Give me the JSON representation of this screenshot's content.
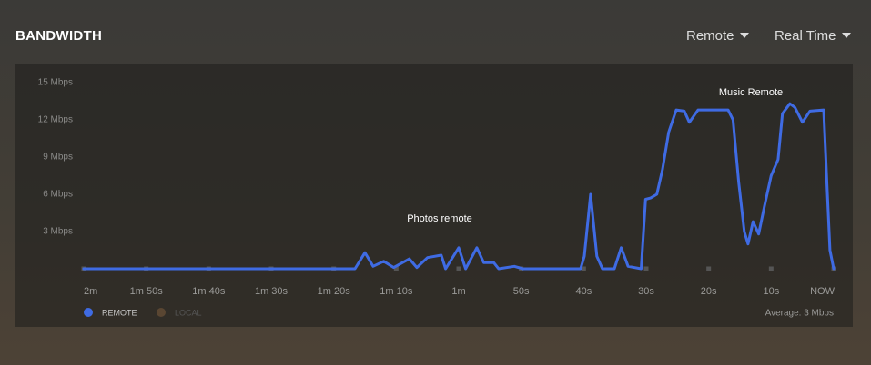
{
  "header": {
    "title": "BANDWIDTH",
    "source_filter": "Remote",
    "range_filter": "Real Time"
  },
  "chart_data": {
    "type": "line",
    "x": [
      -120,
      -76.6,
      -75.0,
      -73.7,
      -72.0,
      -70.4,
      -67.9,
      -66.7,
      -65.0,
      -62.8,
      -62.1,
      -60.0,
      -58.9,
      -57.1,
      -56.0,
      -54.4,
      -53.6,
      -51.1,
      -49.7,
      -40.5,
      -39.9,
      -38.9,
      -37.9,
      -37.0,
      -35.1,
      -34.0,
      -32.9,
      -30.8,
      -30.1,
      -29.3,
      -28.3,
      -27.4,
      -26.4,
      -25.2,
      -23.9,
      -23.1,
      -21.7,
      -19.9,
      -16.9,
      -16.1,
      -15.2,
      -14.3,
      -13.7,
      -12.9,
      -12.0,
      -11.1,
      -10.0,
      -8.9,
      -8.2,
      -7.0,
      -6.2,
      -5.0,
      -3.8,
      -1.6,
      -1.0,
      -0.6,
      0
    ],
    "series": [
      {
        "name": "REMOTE",
        "color": "#3f6be3",
        "values": [
          0,
          0,
          1.3,
          0.2,
          0.6,
          0.1,
          0.8,
          0.1,
          0.9,
          1.1,
          0,
          1.7,
          0,
          1.7,
          0.5,
          0.5,
          0,
          0.2,
          0,
          0,
          1.0,
          6.0,
          1.0,
          0,
          0,
          1.7,
          0.2,
          0,
          5.6,
          5.7,
          6.0,
          8.0,
          11.0,
          12.8,
          12.7,
          11.8,
          12.8,
          12.8,
          12.8,
          12.0,
          7.0,
          3.0,
          2.0,
          3.8,
          2.8,
          5.0,
          7.5,
          8.8,
          12.5,
          13.3,
          13.0,
          11.8,
          12.7,
          12.8,
          6.0,
          1.5,
          0
        ]
      },
      {
        "name": "LOCAL",
        "color": "#5a4632",
        "hidden": true
      }
    ],
    "xlim": [
      -120,
      0
    ],
    "xticks": [
      {
        "value": -120,
        "label": "2m"
      },
      {
        "value": -110,
        "label": "1m 50s"
      },
      {
        "value": -100,
        "label": "1m 40s"
      },
      {
        "value": -90,
        "label": "1m 30s"
      },
      {
        "value": -80,
        "label": "1m 20s"
      },
      {
        "value": -70,
        "label": "1m 10s"
      },
      {
        "value": -60,
        "label": "1m"
      },
      {
        "value": -50,
        "label": "50s"
      },
      {
        "value": -40,
        "label": "40s"
      },
      {
        "value": -30,
        "label": "30s"
      },
      {
        "value": -20,
        "label": "20s"
      },
      {
        "value": -10,
        "label": "10s"
      },
      {
        "value": 0,
        "label": "NOW"
      }
    ],
    "ylim": [
      0,
      15
    ],
    "yticks": [
      {
        "value": 3,
        "label": "3 Mbps"
      },
      {
        "value": 6,
        "label": "6 Mbps"
      },
      {
        "value": 9,
        "label": "9 Mbps"
      },
      {
        "value": 12,
        "label": "12 Mbps"
      },
      {
        "value": 15,
        "label": "15 Mbps"
      }
    ],
    "annotations": [
      "Photos remote",
      "Music Remote"
    ],
    "footer": "Average: 3 Mbps"
  }
}
